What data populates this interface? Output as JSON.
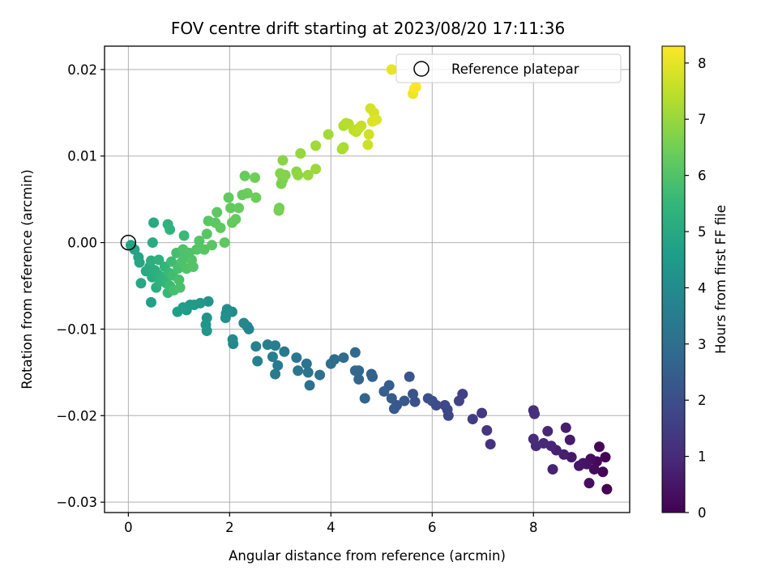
{
  "chart_data": {
    "type": "scatter",
    "title": "FOV centre drift starting at 2023/08/20 17:11:36",
    "xlabel": "Angular distance from reference (arcmin)",
    "ylabel": "Rotation from reference (arcmin)",
    "xlim": [
      -0.47,
      9.9
    ],
    "ylim": [
      -0.0312,
      0.0227
    ],
    "x_ticks": [
      0,
      2,
      4,
      6,
      8
    ],
    "x_tick_labels": [
      "0",
      "2",
      "4",
      "6",
      "8"
    ],
    "y_ticks": [
      0.02,
      0.01,
      0.0,
      -0.01,
      -0.02,
      -0.03
    ],
    "y_tick_labels": [
      "0.02",
      "0.01",
      "0.00",
      "−0.01",
      "−0.02",
      "−0.03"
    ],
    "grid": true,
    "legend": {
      "placement": "upper-right",
      "entries": [
        {
          "label": "Reference platepar",
          "marker": "open-circle"
        }
      ]
    },
    "reference_point": {
      "x": 0,
      "y": 0
    },
    "colorbar": {
      "label": "Hours from first FF file",
      "colormap": "viridis",
      "range": [
        0,
        8.3
      ],
      "ticks": [
        0,
        1,
        2,
        3,
        4,
        5,
        6,
        7,
        8
      ],
      "tick_labels": [
        "0",
        "1",
        "2",
        "3",
        "4",
        "5",
        "6",
        "7",
        "8"
      ],
      "colormap_stops": [
        "#440154",
        "#482878",
        "#3e4989",
        "#31688e",
        "#26828e",
        "#1f9e89",
        "#35b779",
        "#6ece58",
        "#b5de2b",
        "#fde725"
      ]
    },
    "points": [
      [
        9.45,
        -0.0285,
        0.0
      ],
      [
        9.42,
        -0.0248,
        0.05
      ],
      [
        9.37,
        -0.0265,
        0.1
      ],
      [
        9.3,
        -0.0236,
        0.15
      ],
      [
        9.25,
        -0.0253,
        0.2
      ],
      [
        9.2,
        -0.0262,
        0.25
      ],
      [
        9.13,
        -0.025,
        0.3
      ],
      [
        9.1,
        -0.0278,
        0.35
      ],
      [
        9.05,
        -0.0256,
        0.4
      ],
      [
        8.98,
        -0.0255,
        0.45
      ],
      [
        8.9,
        -0.0258,
        0.5
      ],
      [
        8.75,
        -0.0248,
        0.55
      ],
      [
        8.72,
        -0.0228,
        0.6
      ],
      [
        8.64,
        -0.0214,
        0.65
      ],
      [
        8.6,
        -0.0245,
        0.7
      ],
      [
        8.45,
        -0.024,
        0.75
      ],
      [
        8.38,
        -0.0262,
        0.8
      ],
      [
        8.35,
        -0.0235,
        0.85
      ],
      [
        8.28,
        -0.0218,
        0.9
      ],
      [
        8.2,
        -0.0232,
        0.95
      ],
      [
        8.05,
        -0.0235,
        1.0
      ],
      [
        8.0,
        -0.0227,
        1.05
      ],
      [
        8.0,
        -0.0194,
        1.1
      ],
      [
        8.02,
        -0.0198,
        1.15
      ],
      [
        7.15,
        -0.0233,
        1.2
      ],
      [
        7.08,
        -0.0217,
        1.3
      ],
      [
        6.98,
        -0.0197,
        1.4
      ],
      [
        6.8,
        -0.0204,
        1.5
      ],
      [
        6.6,
        -0.0175,
        1.6
      ],
      [
        6.53,
        -0.0183,
        1.7
      ],
      [
        6.32,
        -0.02,
        1.75
      ],
      [
        6.3,
        -0.0193,
        1.8
      ],
      [
        6.25,
        -0.0188,
        1.85
      ],
      [
        6.08,
        -0.0188,
        1.9
      ],
      [
        6.0,
        -0.0183,
        2.0
      ],
      [
        5.92,
        -0.018,
        2.05
      ],
      [
        5.66,
        -0.0184,
        2.1
      ],
      [
        5.62,
        -0.0175,
        2.15
      ],
      [
        5.55,
        -0.0155,
        2.2
      ],
      [
        5.45,
        -0.0183,
        2.25
      ],
      [
        5.3,
        -0.0188,
        2.3
      ],
      [
        5.25,
        -0.0192,
        2.35
      ],
      [
        5.2,
        -0.018,
        2.4
      ],
      [
        5.15,
        -0.0165,
        2.45
      ],
      [
        5.05,
        -0.0172,
        2.5
      ],
      [
        4.82,
        -0.0155,
        2.55
      ],
      [
        4.8,
        -0.0152,
        2.6
      ],
      [
        4.67,
        -0.018,
        2.65
      ],
      [
        4.55,
        -0.0158,
        2.7
      ],
      [
        4.55,
        -0.0148,
        2.75
      ],
      [
        4.48,
        -0.0148,
        2.8
      ],
      [
        4.48,
        -0.0127,
        2.85
      ],
      [
        4.25,
        -0.0133,
        2.9
      ],
      [
        4.07,
        -0.0135,
        2.95
      ],
      [
        4.0,
        -0.014,
        3.0
      ],
      [
        3.78,
        -0.0153,
        3.05
      ],
      [
        3.58,
        -0.0165,
        3.1
      ],
      [
        3.55,
        -0.015,
        3.15
      ],
      [
        3.52,
        -0.014,
        3.2
      ],
      [
        3.35,
        -0.0148,
        3.25
      ],
      [
        3.32,
        -0.0133,
        3.3
      ],
      [
        3.08,
        -0.0126,
        3.35
      ],
      [
        2.95,
        -0.0142,
        3.4
      ],
      [
        2.9,
        -0.0152,
        3.45
      ],
      [
        2.85,
        -0.0132,
        3.5
      ],
      [
        2.9,
        -0.0119,
        3.55
      ],
      [
        2.75,
        -0.0118,
        3.6
      ],
      [
        2.55,
        -0.0137,
        3.65
      ],
      [
        2.52,
        -0.012,
        3.7
      ],
      [
        2.38,
        -0.01,
        3.75
      ],
      [
        2.35,
        -0.0097,
        3.8
      ],
      [
        2.28,
        -0.0093,
        3.85
      ],
      [
        2.07,
        -0.0117,
        3.9
      ],
      [
        2.06,
        -0.0112,
        3.95
      ],
      [
        2.05,
        -0.008,
        4.0
      ],
      [
        1.95,
        -0.0077,
        4.05
      ],
      [
        1.93,
        -0.0082,
        4.1
      ],
      [
        1.92,
        -0.0087,
        4.15
      ],
      [
        1.58,
        -0.0068,
        4.2
      ],
      [
        1.55,
        -0.0087,
        4.25
      ],
      [
        1.53,
        -0.0095,
        4.3
      ],
      [
        1.55,
        -0.0102,
        4.35
      ],
      [
        1.42,
        -0.007,
        4.4
      ],
      [
        1.3,
        -0.0072,
        4.45
      ],
      [
        1.22,
        -0.0072,
        4.5
      ],
      [
        1.15,
        -0.0078,
        4.55
      ],
      [
        1.08,
        -0.0075,
        4.6
      ],
      [
        0.97,
        -0.008,
        4.65
      ],
      [
        0.45,
        -0.0069,
        4.7
      ],
      [
        0.05,
        -0.0003,
        4.75
      ],
      [
        0.12,
        -0.0008,
        4.8
      ],
      [
        0.2,
        -0.0017,
        4.85
      ],
      [
        0.22,
        -0.0023,
        4.9
      ],
      [
        0.25,
        -0.0047,
        4.95
      ],
      [
        0.35,
        -0.0033,
        5.0
      ],
      [
        0.42,
        -0.0028,
        5.05
      ],
      [
        0.47,
        -0.004,
        5.1
      ],
      [
        0.52,
        -0.0032,
        5.15
      ],
      [
        0.55,
        -0.0052,
        5.2
      ],
      [
        0.58,
        -0.0037,
        5.25
      ],
      [
        0.6,
        -0.002,
        5.3
      ],
      [
        0.62,
        -0.0045,
        5.35
      ],
      [
        0.68,
        -0.004,
        5.4
      ],
      [
        0.72,
        -0.0028,
        5.45
      ],
      [
        0.75,
        -0.0047,
        5.5
      ],
      [
        0.78,
        -0.0058,
        5.55
      ],
      [
        0.8,
        -0.0035,
        5.6
      ],
      [
        0.82,
        -0.005,
        5.65
      ],
      [
        0.85,
        -0.0022,
        5.7
      ],
      [
        0.88,
        -0.0038,
        5.75
      ],
      [
        0.9,
        -0.0055,
        5.8
      ],
      [
        0.95,
        -0.0012,
        5.82
      ],
      [
        0.98,
        -0.003,
        5.84
      ],
      [
        1.0,
        -0.0043,
        5.86
      ],
      [
        1.02,
        -0.0052,
        5.88
      ],
      [
        1.05,
        -0.0023,
        5.9
      ],
      [
        1.08,
        -0.0008,
        5.92
      ],
      [
        1.1,
        -0.0018,
        5.94
      ],
      [
        1.15,
        -0.003,
        5.96
      ],
      [
        1.2,
        -0.0012,
        5.98
      ],
      [
        1.25,
        -0.002,
        6.0
      ],
      [
        1.28,
        -0.0028,
        6.02
      ],
      [
        1.35,
        -0.0008,
        6.04
      ],
      [
        0.5,
        0.0023,
        5.0
      ],
      [
        0.48,
        0.0,
        5.1
      ],
      [
        0.78,
        0.0021,
        5.3
      ],
      [
        0.82,
        0.0015,
        5.4
      ],
      [
        1.1,
        0.0008,
        5.6
      ],
      [
        0.45,
        -0.0021,
        5.2
      ],
      [
        1.4,
        0.0002,
        6.06
      ],
      [
        1.5,
        -0.0008,
        6.08
      ],
      [
        1.55,
        0.001,
        6.1
      ],
      [
        1.58,
        0.0025,
        6.12
      ],
      [
        1.65,
        -0.0003,
        6.14
      ],
      [
        1.72,
        0.0023,
        6.16
      ],
      [
        1.75,
        0.0035,
        6.18
      ],
      [
        1.82,
        0.0017,
        6.2
      ],
      [
        1.9,
        0.0,
        6.22
      ],
      [
        1.98,
        0.0052,
        6.24
      ],
      [
        2.02,
        0.004,
        6.26
      ],
      [
        2.05,
        0.0023,
        6.28
      ],
      [
        2.12,
        0.0027,
        6.3
      ],
      [
        2.18,
        0.004,
        6.32
      ],
      [
        2.25,
        0.0055,
        6.34
      ],
      [
        2.3,
        0.0077,
        6.36
      ],
      [
        2.35,
        0.0057,
        6.38
      ],
      [
        2.52,
        0.0052,
        6.4
      ],
      [
        2.5,
        0.0075,
        6.45
      ],
      [
        2.98,
        0.004,
        6.5
      ],
      [
        2.97,
        0.0037,
        6.55
      ],
      [
        3.02,
        0.0068,
        6.6
      ],
      [
        3.05,
        0.0073,
        6.65
      ],
      [
        3.1,
        0.0078,
        6.7
      ],
      [
        3.0,
        0.008,
        6.75
      ],
      [
        3.05,
        0.0095,
        6.8
      ],
      [
        3.32,
        0.0082,
        6.85
      ],
      [
        3.35,
        0.0078,
        6.9
      ],
      [
        3.4,
        0.0103,
        6.95
      ],
      [
        3.55,
        0.0078,
        7.0
      ],
      [
        3.7,
        0.0085,
        7.05
      ],
      [
        3.7,
        0.0112,
        7.1
      ],
      [
        3.95,
        0.0125,
        7.15
      ],
      [
        4.22,
        0.0108,
        7.2
      ],
      [
        4.25,
        0.011,
        7.25
      ],
      [
        4.25,
        0.0135,
        7.3
      ],
      [
        4.3,
        0.0138,
        7.35
      ],
      [
        4.35,
        0.0137,
        7.4
      ],
      [
        4.45,
        0.013,
        7.45
      ],
      [
        4.5,
        0.0128,
        7.5
      ],
      [
        4.55,
        0.0132,
        7.55
      ],
      [
        4.6,
        0.0135,
        7.6
      ],
      [
        4.73,
        0.0113,
        7.65
      ],
      [
        4.75,
        0.0125,
        7.7
      ],
      [
        4.78,
        0.0155,
        7.75
      ],
      [
        4.85,
        0.015,
        7.8
      ],
      [
        4.82,
        0.014,
        7.85
      ],
      [
        4.9,
        0.0142,
        7.9
      ],
      [
        5.2,
        0.02,
        8.0
      ],
      [
        5.62,
        0.0172,
        8.1
      ],
      [
        5.65,
        0.0178,
        8.2
      ],
      [
        5.68,
        0.018,
        8.3
      ]
    ]
  }
}
